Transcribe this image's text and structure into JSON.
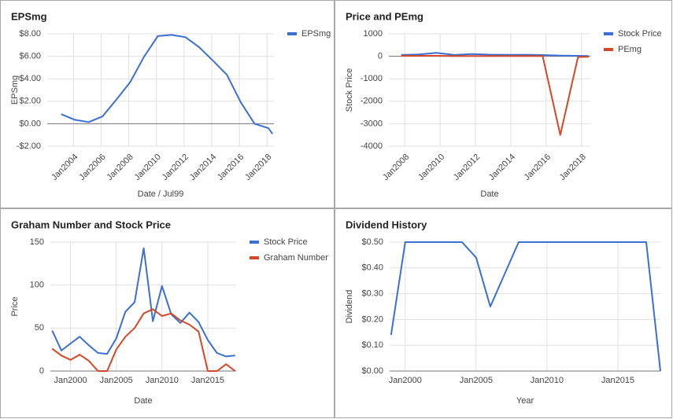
{
  "chart_data": [
    {
      "type": "line",
      "title": "EPSmg",
      "x_label": "Date / Jul99",
      "y_label": "EPSmg",
      "x": [
        2003.1,
        2004.1,
        2005.1,
        2006.1,
        2007.1,
        2008.1,
        2009.1,
        2010.1,
        2011.1,
        2012.1,
        2013.1,
        2014.1,
        2015.1,
        2016.1,
        2017.1,
        2018.1,
        2018.4
      ],
      "xlim": [
        2002.1,
        2018.5
      ],
      "xticks": [
        {
          "value": 2004,
          "label": "Jan2004"
        },
        {
          "value": 2006,
          "label": "Jan2006"
        },
        {
          "value": 2008,
          "label": "Jan2008"
        },
        {
          "value": 2010,
          "label": "Jan2010"
        },
        {
          "value": 2012,
          "label": "Jan2012"
        },
        {
          "value": 2014,
          "label": "Jan2014"
        },
        {
          "value": 2016,
          "label": "Jan2016"
        },
        {
          "value": 2018,
          "label": "Jan2018"
        }
      ],
      "ylim": [
        -2,
        8
      ],
      "yticks": [
        {
          "value": 8,
          "label": "$8.00"
        },
        {
          "value": 6,
          "label": "$6.00"
        },
        {
          "value": 4,
          "label": "$4.00"
        },
        {
          "value": 2,
          "label": "$2.00"
        },
        {
          "value": 0,
          "label": "$0.00"
        },
        {
          "value": -2,
          "label": "-$2.00"
        }
      ],
      "grid": true,
      "legend": "right",
      "series": [
        {
          "name": "EPSmg",
          "color": "#3c6fd1",
          "values": [
            0.85,
            0.35,
            0.15,
            0.65,
            2.15,
            3.7,
            5.95,
            7.8,
            7.9,
            7.7,
            6.8,
            5.6,
            4.35,
            1.9,
            0,
            -0.4,
            -0.9
          ]
        }
      ]
    },
    {
      "type": "line",
      "title": "Price and PEmg",
      "x_label": "Date",
      "y_label": "Stock Price",
      "x": [
        2007.8,
        2008.8,
        2009.8,
        2010.8,
        2011.8,
        2012.8,
        2013.8,
        2014.8,
        2015.8,
        2016.8,
        2017.8,
        2018.4
      ],
      "xlim": [
        2007.1,
        2018.5
      ],
      "xticks": [
        {
          "value": 2008,
          "label": "Jan2008"
        },
        {
          "value": 2010,
          "label": "Jan2010"
        },
        {
          "value": 2012,
          "label": "Jan2012"
        },
        {
          "value": 2014,
          "label": "Jan2014"
        },
        {
          "value": 2016,
          "label": "Jan2016"
        },
        {
          "value": 2018,
          "label": "Jan2018"
        }
      ],
      "ylim": [
        -4000,
        1000
      ],
      "yticks": [
        1000,
        0,
        -1000,
        -2000,
        -3000,
        -4000
      ],
      "grid": true,
      "legend": "right",
      "series": [
        {
          "name": "Stock Price",
          "color": "#3c6fd1",
          "values": [
            60,
            80,
            150,
            60,
            100,
            75,
            65,
            70,
            55,
            30,
            20,
            15
          ]
        },
        {
          "name": "PEmg",
          "color": "#d44727",
          "values": [
            20,
            20,
            20,
            15,
            15,
            15,
            10,
            10,
            10,
            -3500,
            -30,
            -20
          ]
        }
      ]
    },
    {
      "type": "line",
      "title": "Graham Number and Stock Price",
      "x_label": "Date",
      "y_label": "Price",
      "x": [
        1998,
        1999,
        2000,
        2001,
        2002,
        2003,
        2004,
        2005,
        2006,
        2007,
        2008,
        2009,
        2010,
        2011,
        2012,
        2013,
        2014,
        2015,
        2016,
        2017,
        2018
      ],
      "xlim": [
        1997.8,
        2018.1
      ],
      "xticks": [
        {
          "value": 2000,
          "label": "Jan2000"
        },
        {
          "value": 2005,
          "label": "Jan2005"
        },
        {
          "value": 2010,
          "label": "Jan2010"
        },
        {
          "value": 2015,
          "label": "Jan2015"
        }
      ],
      "ylim": [
        0,
        150
      ],
      "yticks": [
        150,
        100,
        50,
        0
      ],
      "grid": true,
      "legend": "right",
      "series": [
        {
          "name": "Stock Price",
          "color": "#3c6fd1",
          "values": [
            47,
            24,
            32,
            40,
            30,
            21,
            20,
            38,
            69,
            80,
            143,
            58,
            99,
            66,
            56,
            68,
            57,
            36,
            21,
            17,
            18
          ]
        },
        {
          "name": "Graham Number",
          "color": "#d44727",
          "values": [
            26,
            18,
            13,
            19,
            12,
            0,
            0,
            25,
            40,
            50,
            67,
            72,
            64,
            67,
            59,
            54,
            46,
            0,
            0,
            8,
            0
          ]
        }
      ]
    },
    {
      "type": "line",
      "title": "Dividend History",
      "x_label": "Year",
      "y_label": "Dividend",
      "x": [
        1999,
        2000,
        2004,
        2005,
        2006,
        2008,
        2017,
        2018
      ],
      "xlim": [
        1998.9,
        2018
      ],
      "xticks": [
        {
          "value": 2000,
          "label": "Jan2000"
        },
        {
          "value": 2005,
          "label": "Jan2005"
        },
        {
          "value": 2010,
          "label": "Jan2010"
        },
        {
          "value": 2015,
          "label": "Jan2015"
        }
      ],
      "ylim": [
        0,
        0.5
      ],
      "yticks": [
        {
          "value": 0.5,
          "label": "$0.50"
        },
        {
          "value": 0.4,
          "label": "$0.40"
        },
        {
          "value": 0.3,
          "label": "$0.30"
        },
        {
          "value": 0.2,
          "label": "$0.20"
        },
        {
          "value": 0.1,
          "label": "$0.10"
        },
        {
          "value": 0,
          "label": "$0.00"
        }
      ],
      "grid": true,
      "series": [
        {
          "name": "Dividend",
          "color": "#3c6fd1",
          "values": [
            0.14,
            0.5,
            0.5,
            0.44,
            0.25,
            0.5,
            0.5,
            0
          ]
        }
      ]
    }
  ]
}
